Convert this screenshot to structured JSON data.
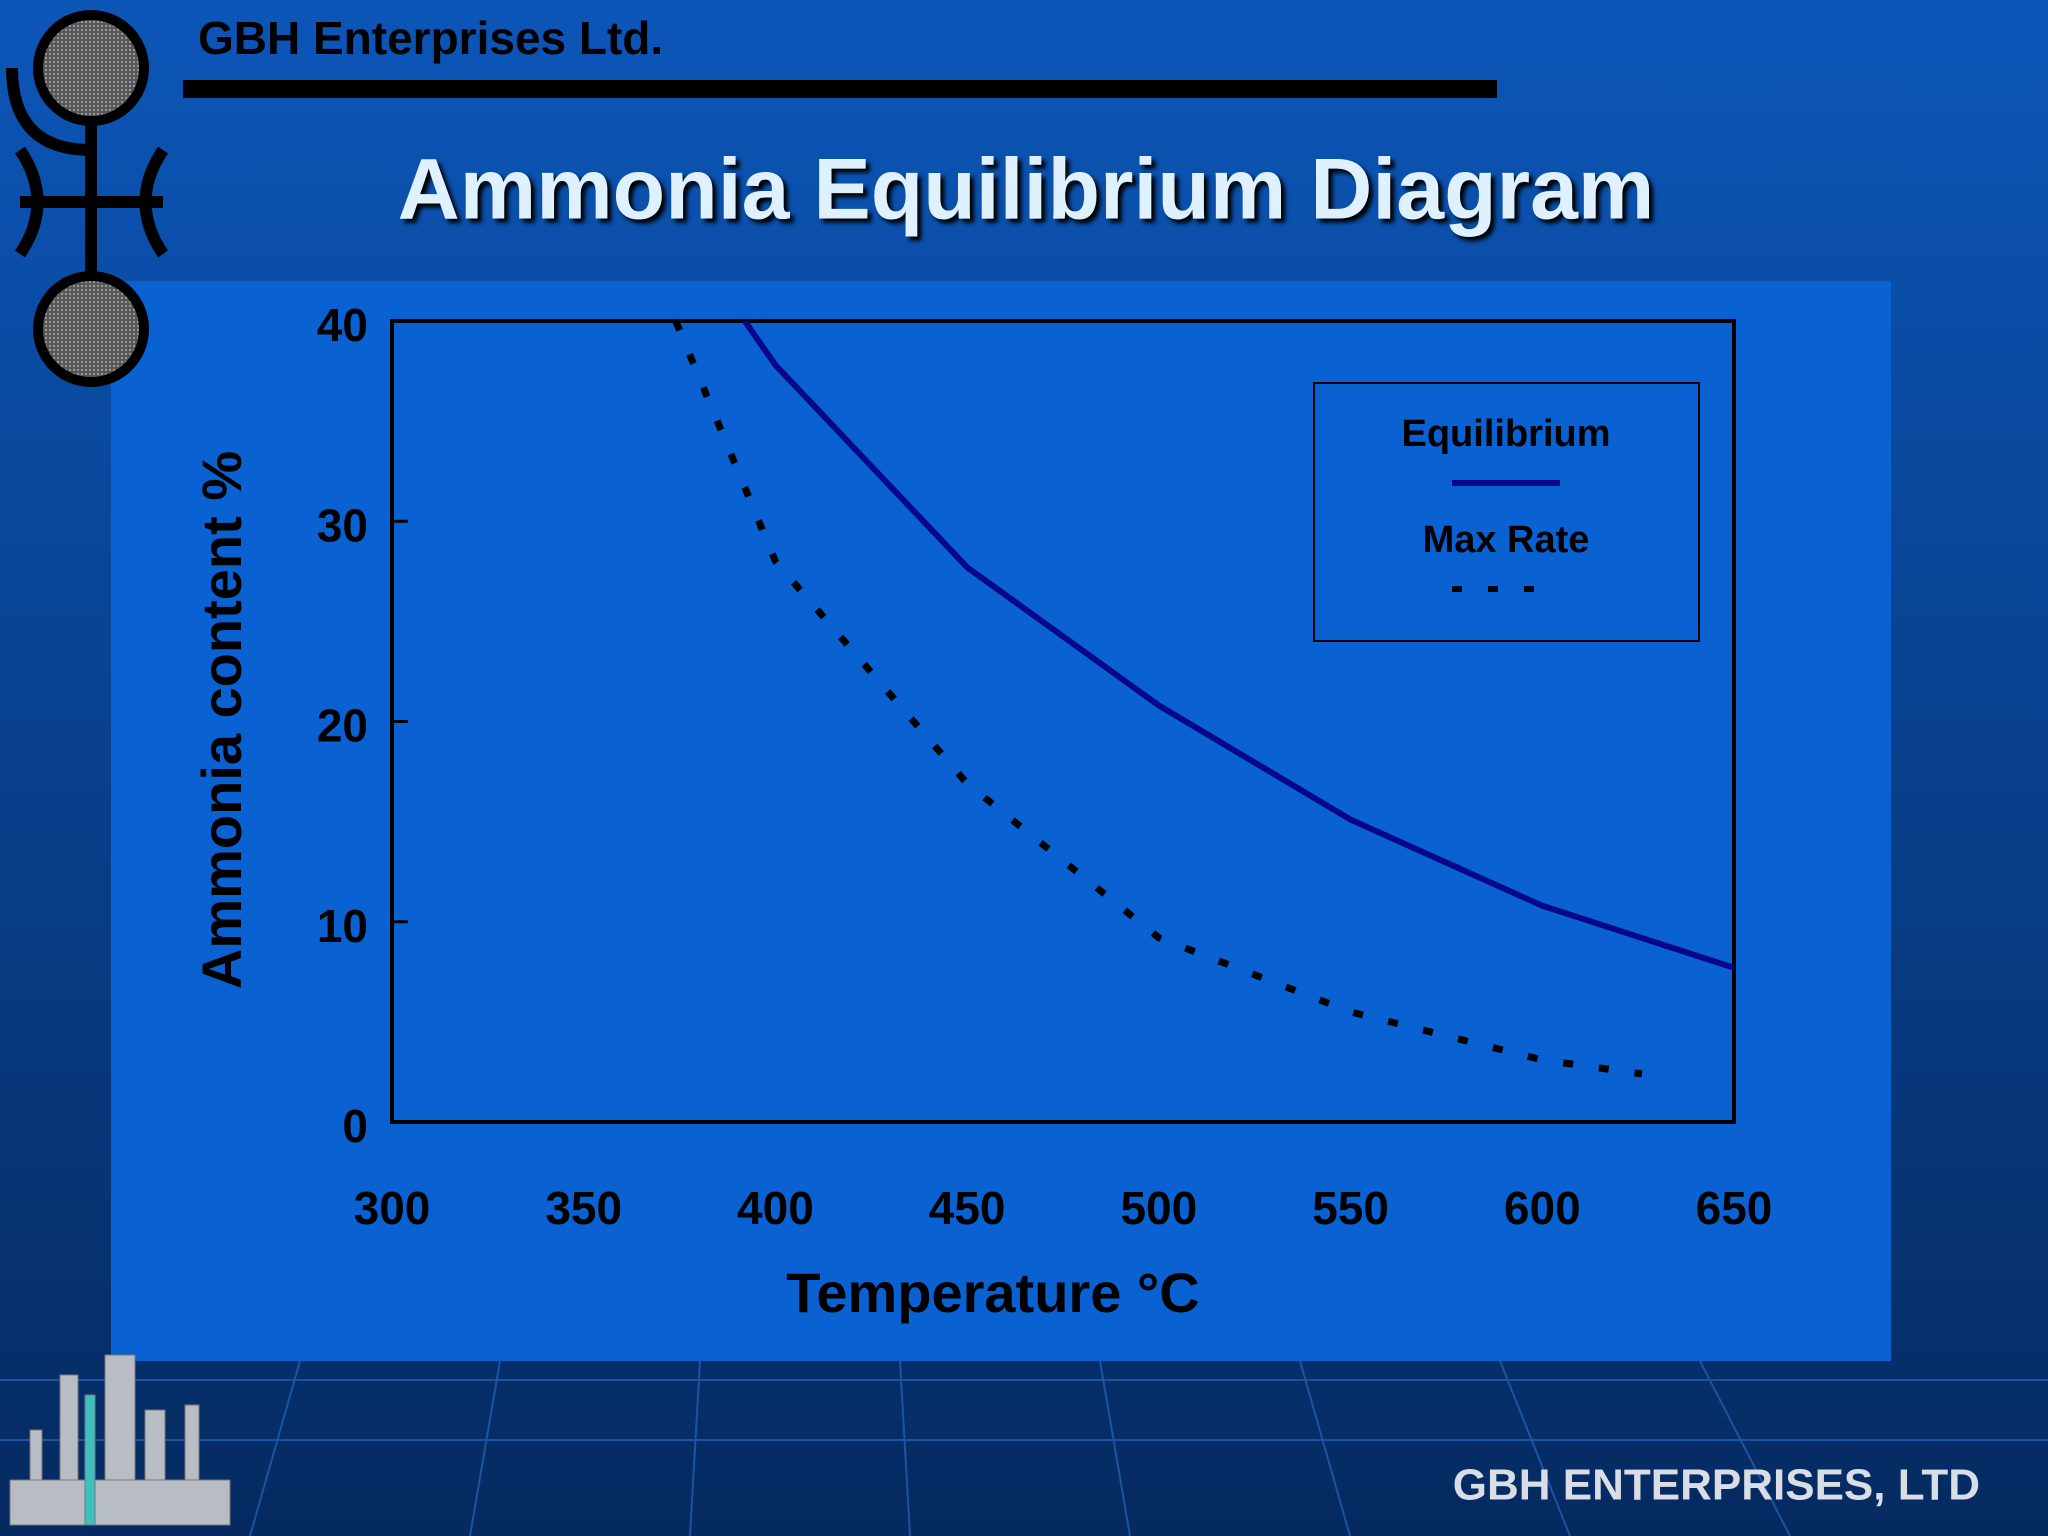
{
  "header": {
    "company": "GBH Enterprises Ltd."
  },
  "footer": {
    "company": "GBH ENTERPRISES, LTD"
  },
  "chart_data": {
    "type": "line",
    "title": "Ammonia Equilibrium Diagram",
    "x_label": "Temperature °C",
    "y_label": "Ammonia content  %",
    "xlim": [
      300,
      650
    ],
    "xticks": [
      300,
      350,
      400,
      450,
      500,
      550,
      600,
      650
    ],
    "ylim": [
      0,
      40
    ],
    "yticks": [
      0,
      10,
      20,
      30,
      40
    ],
    "legend": "upper right",
    "series": [
      {
        "name": "Equilibrium",
        "color": "#07078a",
        "linestyle": "solid",
        "x": [
          392,
          400,
          450,
          500,
          550,
          600,
          650
        ],
        "values": [
          40,
          37.8,
          27.7,
          20.8,
          15.1,
          10.8,
          7.7
        ]
      },
      {
        "name": "Max Rate",
        "color": "#000000",
        "linestyle": "dashed",
        "x": [
          374,
          400,
          450,
          500,
          550,
          600,
          626
        ],
        "values": [
          40,
          28,
          16.9,
          9.2,
          5.5,
          3.1,
          2.4
        ]
      }
    ]
  }
}
